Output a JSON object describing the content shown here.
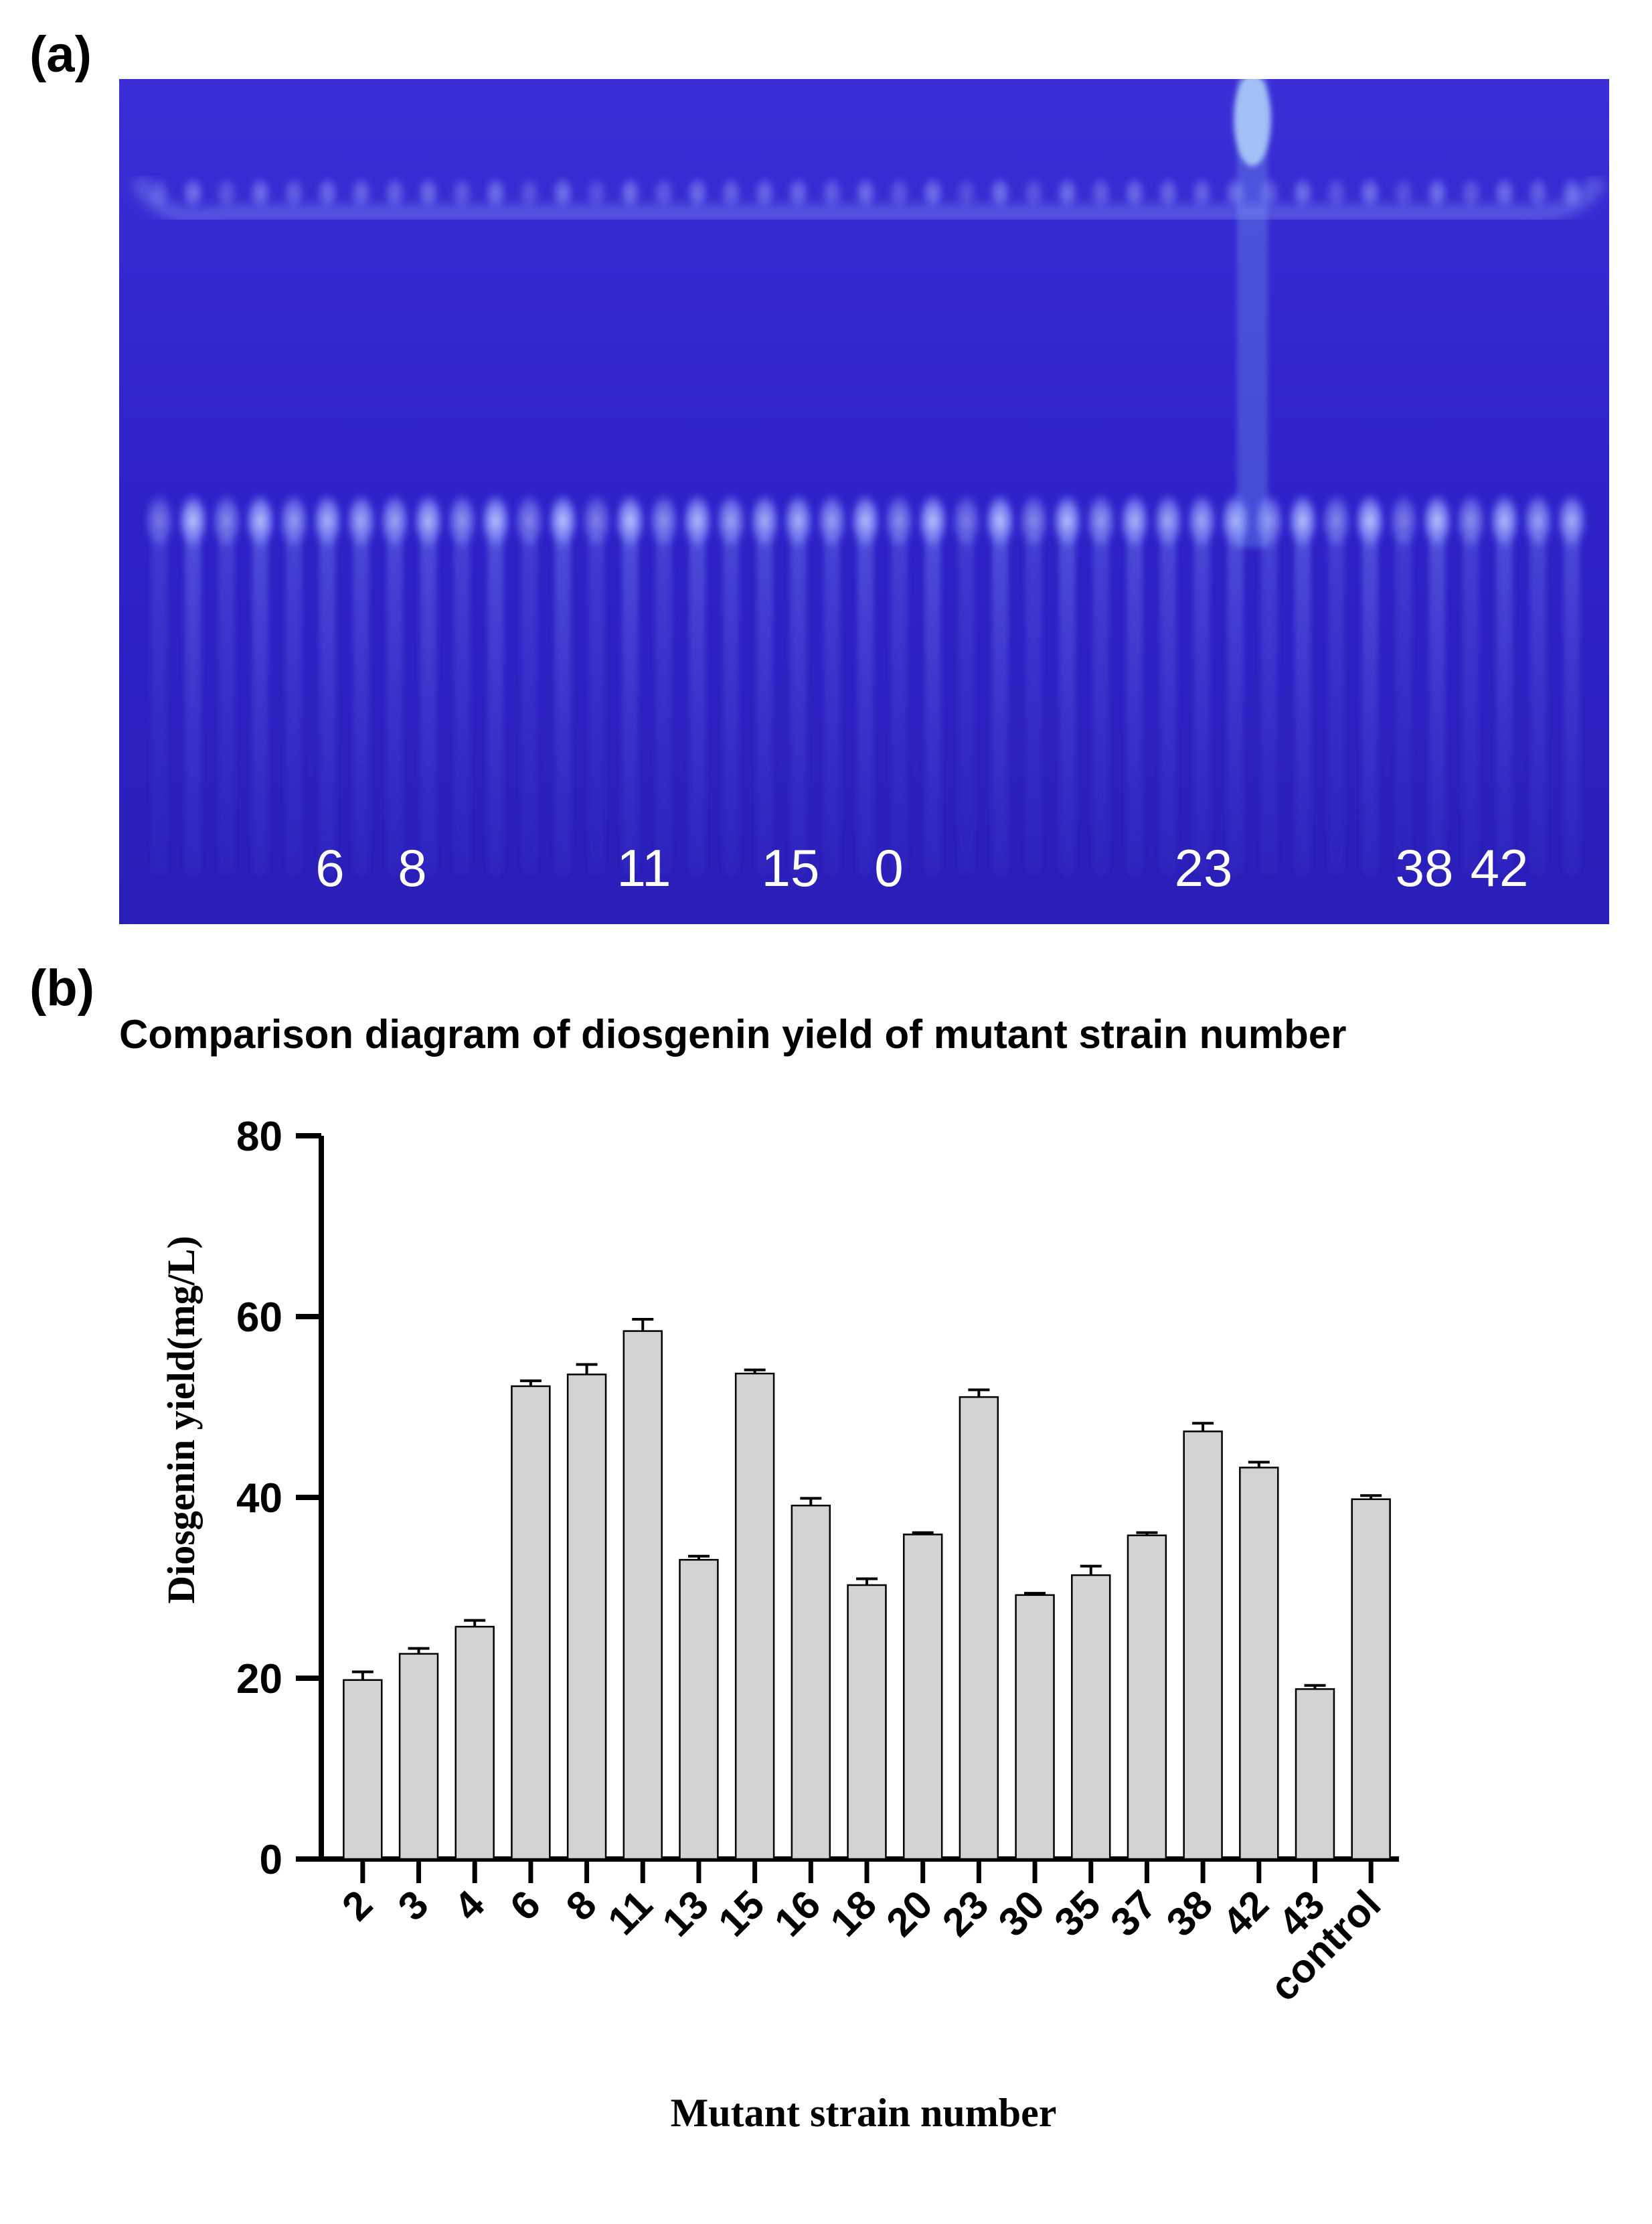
{
  "panel_a": {
    "label": "(a)",
    "lane_labels": [
      "6",
      "8",
      "11",
      "15",
      "0",
      "23",
      "38",
      "42"
    ]
  },
  "panel_b": {
    "label": "(b)"
  },
  "colors": {
    "plate_background": "#2e22c8",
    "plate_spot": "#8f9cff",
    "bar_fill": "#d3d3d3",
    "bar_stroke": "#000000"
  },
  "chart_data": {
    "type": "bar",
    "title": "Comparison diagram of diosgenin yield of mutant strain number",
    "xlabel": "Mutant strain number",
    "ylabel": "Diosgenin yield(mg/L)",
    "ylim": [
      0,
      80
    ],
    "yticks": [
      0,
      20,
      40,
      60,
      80
    ],
    "categories": [
      "2",
      "3",
      "4",
      "6",
      "8",
      "11",
      "13",
      "15",
      "16",
      "18",
      "20",
      "23",
      "30",
      "35",
      "37",
      "38",
      "42",
      "43",
      "control"
    ],
    "values": [
      19.8,
      22.7,
      25.7,
      52.3,
      53.6,
      58.4,
      33.1,
      53.7,
      39.1,
      30.3,
      35.9,
      51.1,
      29.2,
      31.4,
      35.8,
      47.3,
      43.3,
      18.8,
      39.8
    ],
    "errors": [
      0.9,
      0.6,
      0.7,
      0.6,
      1.1,
      1.3,
      0.4,
      0.4,
      0.8,
      0.7,
      0.2,
      0.8,
      0.2,
      1.0,
      0.3,
      0.9,
      0.6,
      0.4,
      0.4
    ],
    "grid": false,
    "legend": "none"
  }
}
